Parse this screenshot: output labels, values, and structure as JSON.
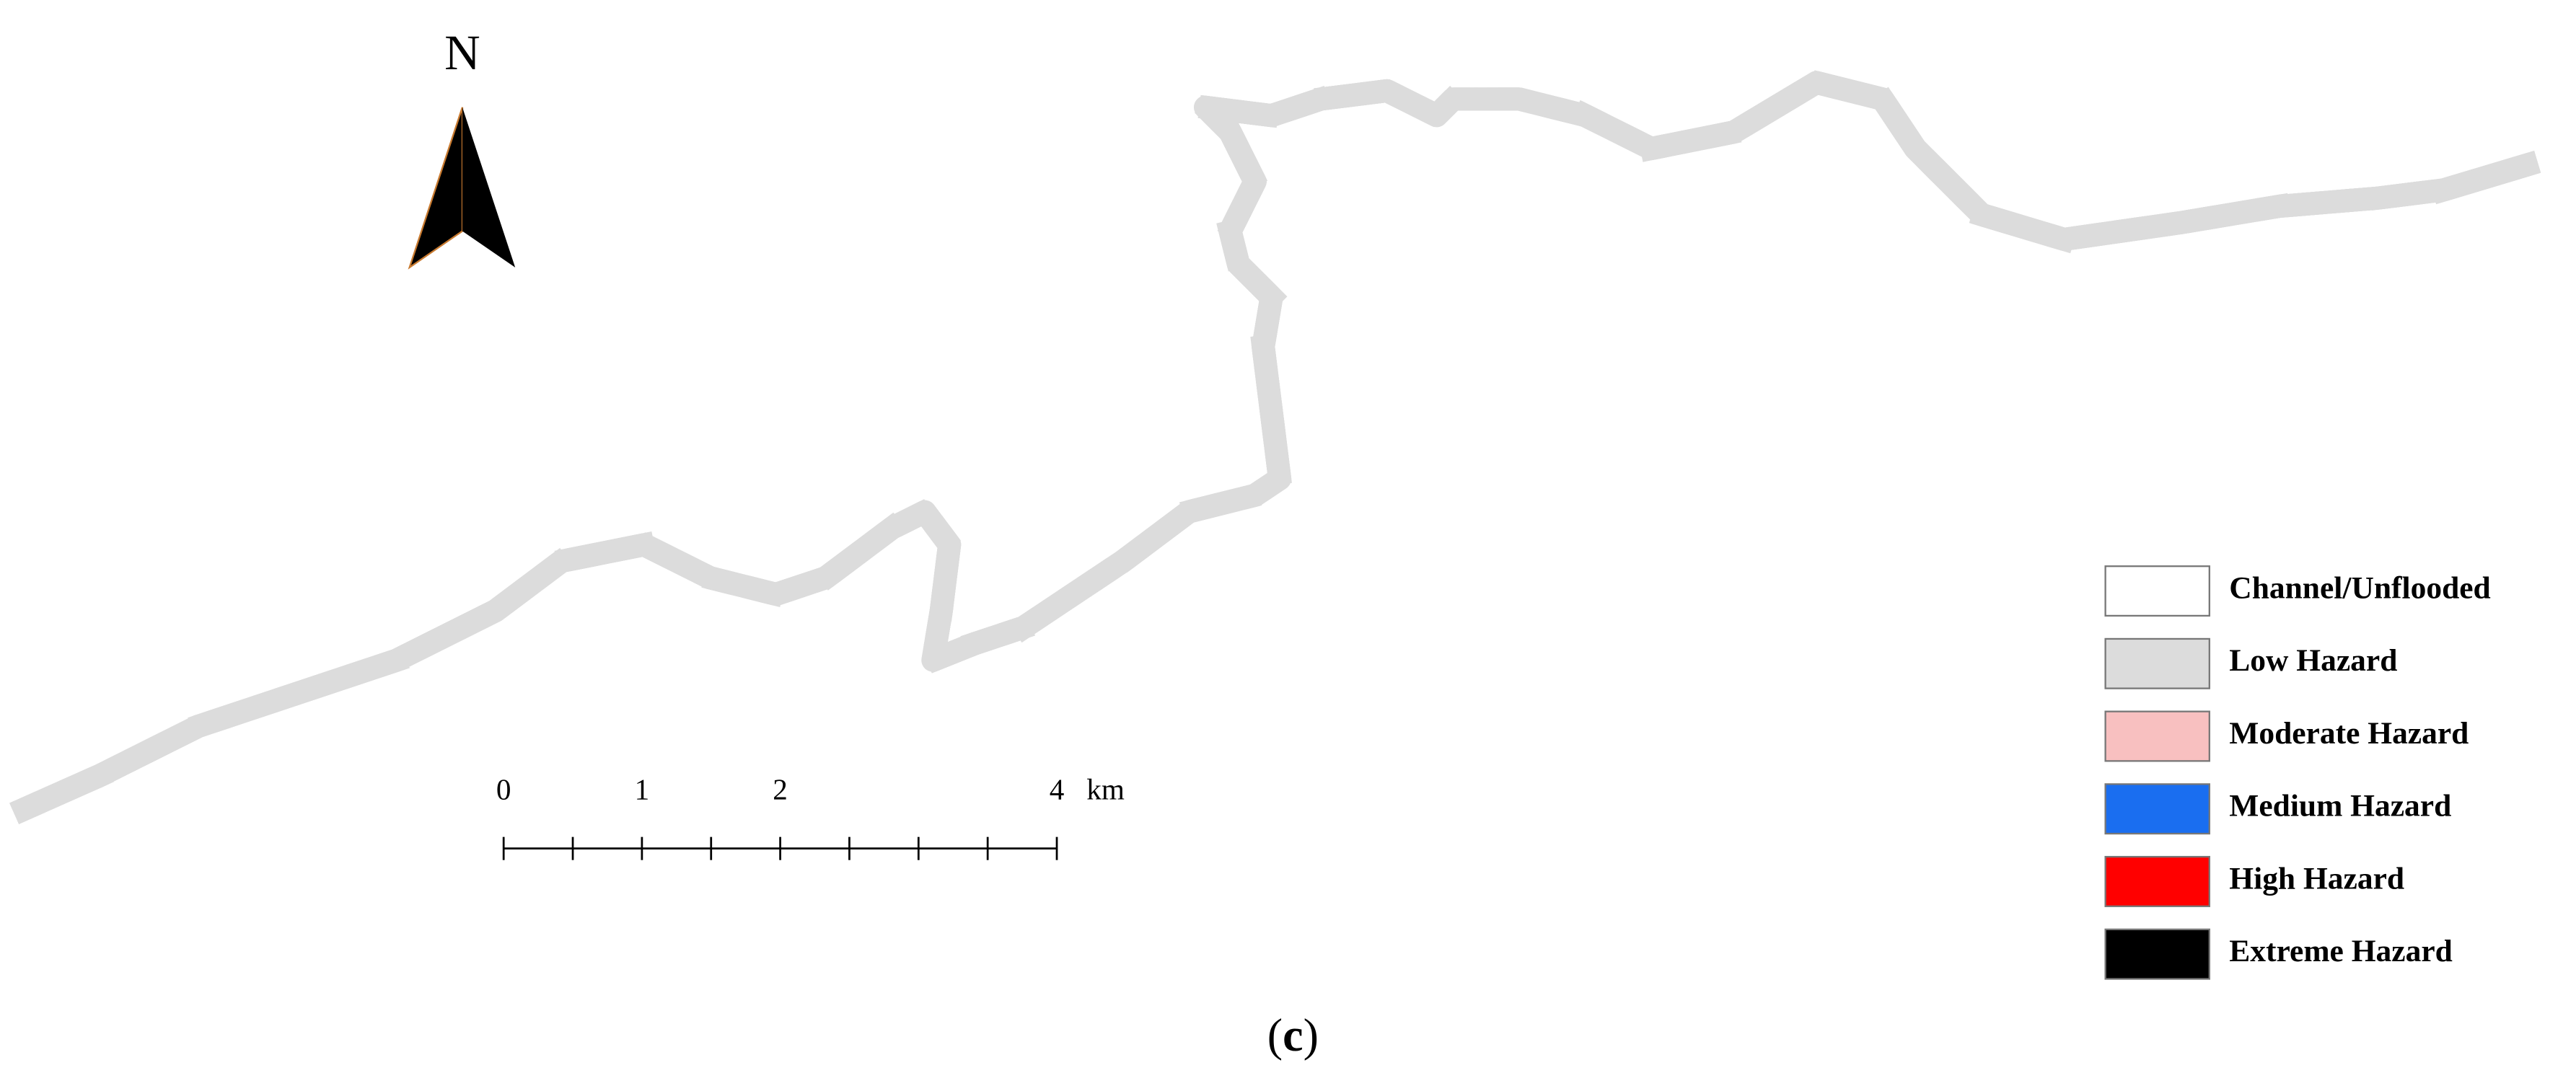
{
  "north_label": "N",
  "scale_bar": {
    "labels": [
      0,
      1,
      2,
      4
    ],
    "unit": "km"
  },
  "legend": [
    "Channel/Unflooded",
    "Low Hazard",
    "Moderate Hazard",
    "Medium Hazard",
    "High Hazard",
    "Extreme Hazard"
  ],
  "caption": [
    "(",
    "c",
    ")"
  ]
}
